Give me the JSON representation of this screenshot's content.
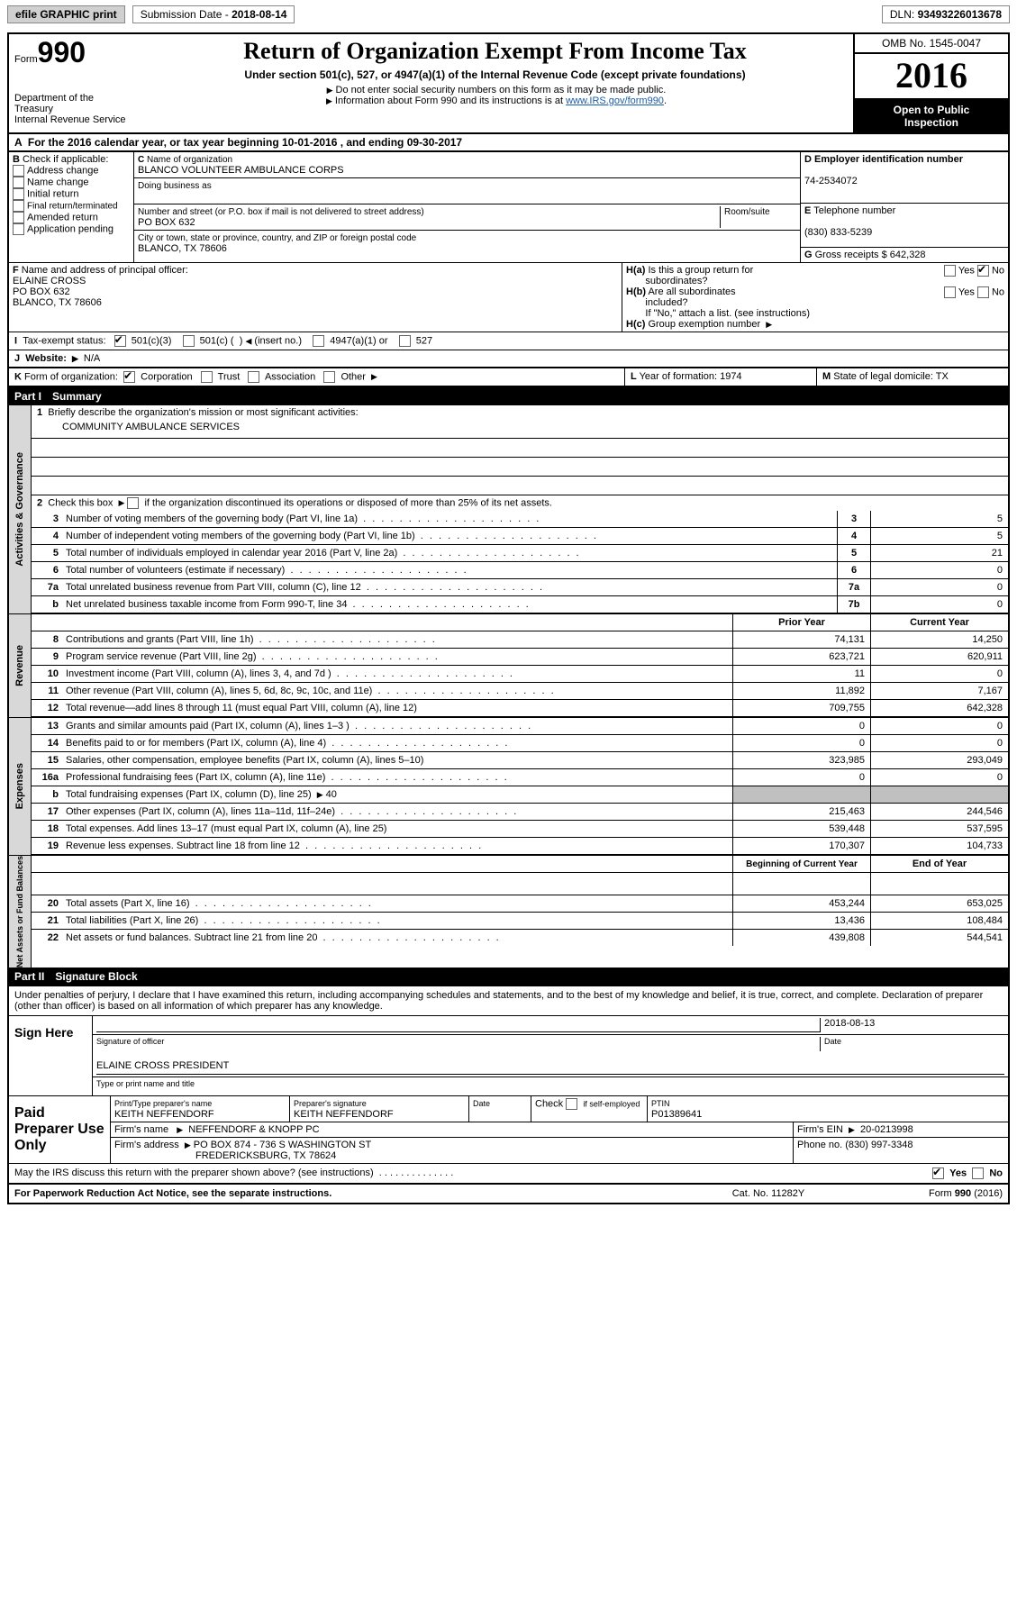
{
  "topbar": {
    "efile": "efile GRAPHIC print",
    "submission_label": "Submission Date -",
    "submission_date": "2018-08-14",
    "dln_label": "DLN:",
    "dln": "93493226013678"
  },
  "header": {
    "form_word": "Form",
    "form_num": "990",
    "dept1": "Department of the Treasury",
    "dept2": "Internal Revenue Service",
    "title": "Return of Organization Exempt From Income Tax",
    "sub": "Under section 501(c), 527, or 4947(a)(1) of the Internal Revenue Code (except private foundations)",
    "ssn": "Do not enter social security numbers on this form as it may be made public.",
    "info_pre": "Information about Form 990 and its instructions is at ",
    "info_link": "www.IRS.gov/form990",
    "omb": "OMB No. 1545-0047",
    "year": "2016",
    "public1": "Open to Public",
    "public2": "Inspection"
  },
  "A": {
    "text": "For the 2016 calendar year, or tax year beginning 10-01-2016   , and ending 09-30-2017"
  },
  "B": {
    "label": "Check if applicable:",
    "items": [
      "Address change",
      "Name change",
      "Initial return",
      "Final return/terminated",
      "Amended return",
      "Application pending"
    ]
  },
  "C": {
    "name_label": "Name of organization",
    "name": "BLANCO VOLUNTEER AMBULANCE CORPS",
    "dba_label": "Doing business as",
    "dba": "",
    "street_label": "Number and street (or P.O. box if mail is not delivered to street address)",
    "room_label": "Room/suite",
    "street": "PO BOX 632",
    "city_label": "City or town, state or province, country, and ZIP or foreign postal code",
    "city": "BLANCO, TX  78606"
  },
  "D": {
    "label": "Employer identification number",
    "val": "74-2534072"
  },
  "E": {
    "label": "Telephone number",
    "val": "(830) 833-5239"
  },
  "G": {
    "label": "Gross receipts $",
    "val": "642,328"
  },
  "F": {
    "label": "Name and address of principal officer:",
    "name": "ELAINE CROSS",
    "l2": "PO BOX 632",
    "l3": "BLANCO, TX  78606"
  },
  "H": {
    "a": "Is this a group return for",
    "a2": "subordinates?",
    "b": "Are all subordinates",
    "b2": "included?",
    "ifno": "If \"No,\" attach a list. (see instructions)",
    "c": "Group exemption number",
    "yes": "Yes",
    "no": "No"
  },
  "I": {
    "label": "Tax-exempt status:",
    "a": "501(c)(3)",
    "b": "501(c) (",
    "b2": ") ",
    "insert": "(insert no.)",
    "c": "4947(a)(1) or",
    "d": "527"
  },
  "J": {
    "label": "Website:",
    "val": "N/A"
  },
  "K": {
    "label": "Form of organization:",
    "a": "Corporation",
    "b": "Trust",
    "c": "Association",
    "d": "Other"
  },
  "L": {
    "label": "Year of formation:",
    "val": "1974"
  },
  "M": {
    "label": "State of legal domicile:",
    "val": "TX"
  },
  "part1": {
    "label": "Part I",
    "title": "Summary"
  },
  "gov": {
    "tab": "Activities & Governance",
    "l1": "Briefly describe the organization's mission or most significant activities:",
    "mission": "COMMUNITY AMBULANCE SERVICES",
    "l2": "Check this box",
    "l2b": "if the organization discontinued its operations or disposed of more than 25% of its net assets.",
    "l3": "Number of voting members of the governing body (Part VI, line 1a)",
    "l4": "Number of independent voting members of the governing body (Part VI, line 1b)",
    "l5": "Total number of individuals employed in calendar year 2016 (Part V, line 2a)",
    "l6": "Total number of volunteers (estimate if necessary)",
    "l7a": "Total unrelated business revenue from Part VIII, column (C), line 12",
    "l7b": "Net unrelated business taxable income from Form 990-T, line 34",
    "v3": "5",
    "v4": "5",
    "v5": "21",
    "v6": "0",
    "v7a": "0",
    "v7b": "0"
  },
  "rev": {
    "tab": "Revenue",
    "prior": "Prior Year",
    "current": "Current Year",
    "l8": "Contributions and grants (Part VIII, line 1h)",
    "p8": "74,131",
    "c8": "14,250",
    "l9": "Program service revenue (Part VIII, line 2g)",
    "p9": "623,721",
    "c9": "620,911",
    "l10": "Investment income (Part VIII, column (A), lines 3, 4, and 7d )",
    "p10": "11",
    "c10": "0",
    "l11": "Other revenue (Part VIII, column (A), lines 5, 6d, 8c, 9c, 10c, and 11e)",
    "p11": "11,892",
    "c11": "7,167",
    "l12": "Total revenue—add lines 8 through 11 (must equal Part VIII, column (A), line 12)",
    "p12": "709,755",
    "c12": "642,328"
  },
  "exp": {
    "tab": "Expenses",
    "l13": "Grants and similar amounts paid (Part IX, column (A), lines 1–3 )",
    "p13": "0",
    "c13": "0",
    "l14": "Benefits paid to or for members (Part IX, column (A), line 4)",
    "p14": "0",
    "c14": "0",
    "l15": "Salaries, other compensation, employee benefits (Part IX, column (A), lines 5–10)",
    "p15": "323,985",
    "c15": "293,049",
    "l16a": "Professional fundraising fees (Part IX, column (A), line 11e)",
    "p16a": "0",
    "c16a": "0",
    "l16b": "Total fundraising expenses (Part IX, column (D), line 25)",
    "v16b": "40",
    "l17": "Other expenses (Part IX, column (A), lines 11a–11d, 11f–24e)",
    "p17": "215,463",
    "c17": "244,546",
    "l18": "Total expenses. Add lines 13–17 (must equal Part IX, column (A), line 25)",
    "p18": "539,448",
    "c18": "537,595",
    "l19": "Revenue less expenses. Subtract line 18 from line 12",
    "p19": "170,307",
    "c19": "104,733"
  },
  "net": {
    "tab": "Net Assets or Fund Balances",
    "begin": "Beginning of Current Year",
    "end": "End of Year",
    "l20": "Total assets (Part X, line 16)",
    "p20": "453,244",
    "c20": "653,025",
    "l21": "Total liabilities (Part X, line 26)",
    "p21": "13,436",
    "c21": "108,484",
    "l22": "Net assets or fund balances. Subtract line 21 from line 20",
    "p22": "439,808",
    "c22": "544,541"
  },
  "part2": {
    "label": "Part II",
    "title": "Signature Block"
  },
  "sig": {
    "perjury": "Under penalties of perjury, I declare that I have examined this return, including accompanying schedules and statements, and to the best of my knowledge and belief, it is true, correct, and complete. Declaration of preparer (other than officer) is based on all information of which preparer has any knowledge.",
    "here": "Sign Here",
    "date": "2018-08-13",
    "sig_of": "Signature of officer",
    "date_lbl": "Date",
    "name": "ELAINE CROSS PRESIDENT",
    "name_lbl": "Type or print name and title"
  },
  "prep": {
    "label": "Paid Preparer Use Only",
    "h1": "Print/Type preparer's name",
    "h2": "Preparer's signature",
    "h3": "Date",
    "h4": "Check",
    "h4b": "if self-employed",
    "h5": "PTIN",
    "name": "KEITH NEFFENDORF",
    "sig": "KEITH NEFFENDORF",
    "ptin": "P01389641",
    "firm_lbl": "Firm's name",
    "firm": "NEFFENDORF & KNOPP PC",
    "ein_lbl": "Firm's EIN",
    "ein": "20-0213998",
    "addr_lbl": "Firm's address",
    "addr": "PO BOX 874 - 736 S WASHINGTON ST",
    "addr2": "FREDERICKSBURG, TX  78624",
    "phone_lbl": "Phone no.",
    "phone": "(830) 997-3348"
  },
  "discuss": {
    "q": "May the IRS discuss this return with the preparer shown above? (see instructions)",
    "yes": "Yes",
    "no": "No"
  },
  "footer": {
    "pra": "For Paperwork Reduction Act Notice, see the separate instructions.",
    "cat": "Cat. No. 11282Y",
    "form": "Form",
    "num": "990",
    "yr": "(2016)"
  }
}
